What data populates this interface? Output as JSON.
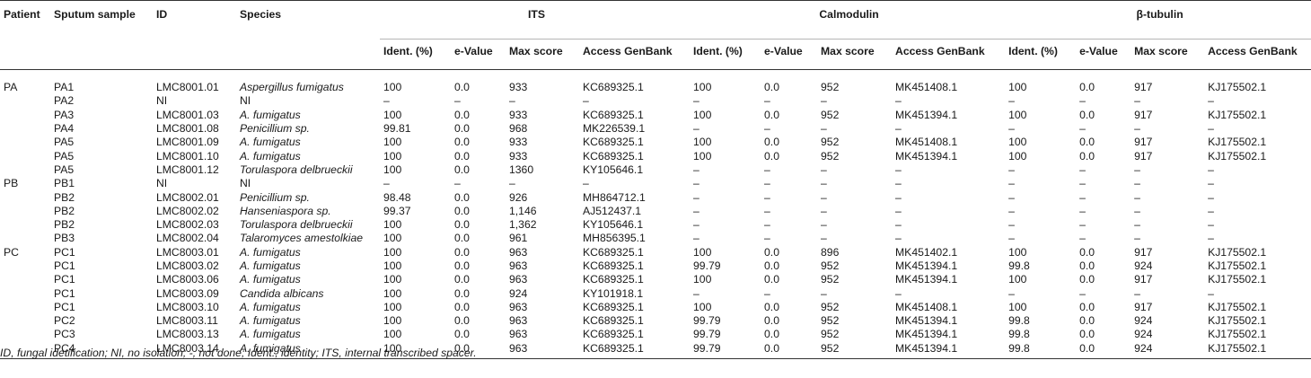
{
  "headers": {
    "patient": "Patient",
    "sputum_sample": "Sputum sample",
    "id": "ID",
    "species": "Species",
    "groups": [
      "ITS",
      "Calmodulin",
      "β-tubulin"
    ],
    "sub": [
      "Ident. (%)",
      "e-Value",
      "Max score",
      "Access GenBank"
    ]
  },
  "rows": [
    [
      "PA",
      "PA1",
      "LMC8001.01",
      "Aspergillus fumigatus",
      "100",
      "0.0",
      "933",
      "KC689325.1",
      "100",
      "0.0",
      "952",
      "MK451408.1",
      "100",
      "0.0",
      "917",
      "KJ175502.1"
    ],
    [
      "",
      "PA2",
      "NI",
      "NI",
      "–",
      "–",
      "–",
      "–",
      "–",
      "–",
      "–",
      "–",
      "–",
      "–",
      "–",
      "–"
    ],
    [
      "",
      "PA3",
      "LMC8001.03",
      "A. fumigatus",
      "100",
      "0.0",
      "933",
      "KC689325.1",
      "100",
      "0.0",
      "952",
      "MK451394.1",
      "100",
      "0.0",
      "917",
      "KJ175502.1"
    ],
    [
      "",
      "PA4",
      "LMC8001.08",
      "Penicillium sp.",
      "99.81",
      "0.0",
      "968",
      "MK226539.1",
      "–",
      "–",
      "–",
      "–",
      "–",
      "–",
      "–",
      "–"
    ],
    [
      "",
      "PA5",
      "LMC8001.09",
      "A. fumigatus",
      "100",
      "0.0",
      "933",
      "KC689325.1",
      "100",
      "0.0",
      "952",
      "MK451408.1",
      "100",
      "0.0",
      "917",
      "KJ175502.1"
    ],
    [
      "",
      "PA5",
      "LMC8001.10",
      "A. fumigatus",
      "100",
      "0.0",
      "933",
      "KC689325.1",
      "100",
      "0.0",
      "952",
      "MK451394.1",
      "100",
      "0.0",
      "917",
      "KJ175502.1"
    ],
    [
      "",
      "PA5",
      "LMC8001.12",
      "Torulaspora delbrueckii",
      "100",
      "0.0",
      "1360",
      "KY105646.1",
      "–",
      "–",
      "–",
      "–",
      "–",
      "–",
      "–",
      "–"
    ],
    [
      "PB",
      "PB1",
      "NI",
      "NI",
      "–",
      "–",
      "–",
      "–",
      "–",
      "–",
      "–",
      "–",
      "–",
      "–",
      "–",
      "–"
    ],
    [
      "",
      "PB2",
      "LMC8002.01",
      "Penicillium sp.",
      "98.48",
      "0.0",
      "926",
      "MH864712.1",
      "–",
      "–",
      "–",
      "–",
      "–",
      "–",
      "–",
      "–"
    ],
    [
      "",
      "PB2",
      "LMC8002.02",
      "Hanseniaspora sp.",
      "99.37",
      "0.0",
      "1,146",
      "AJ512437.1",
      "–",
      "–",
      "–",
      "–",
      "–",
      "–",
      "–",
      "–"
    ],
    [
      "",
      "PB2",
      "LMC8002.03",
      "Torulaspora delbrueckii",
      "100",
      "0.0",
      "1,362",
      "KY105646.1",
      "–",
      "–",
      "–",
      "–",
      "–",
      "–",
      "–",
      "–"
    ],
    [
      "",
      "PB3",
      "LMC8002.04",
      "Talaromyces amestolkiae",
      "100",
      "0.0",
      "961",
      "MH856395.1",
      "–",
      "–",
      "–",
      "–",
      "–",
      "–",
      "–",
      "–"
    ],
    [
      "PC",
      "PC1",
      "LMC8003.01",
      "A. fumigatus",
      "100",
      "0.0",
      "963",
      "KC689325.1",
      "100",
      "0.0",
      "896",
      "MK451402.1",
      "100",
      "0.0",
      "917",
      "KJ175502.1"
    ],
    [
      "",
      "PC1",
      "LMC8003.02",
      "A. fumigatus",
      "100",
      "0.0",
      "963",
      "KC689325.1",
      "99.79",
      "0.0",
      "952",
      "MK451394.1",
      "99.8",
      "0.0",
      "924",
      "KJ175502.1"
    ],
    [
      "",
      "PC1",
      "LMC8003.06",
      "A. fumigatus",
      "100",
      "0.0",
      "963",
      "KC689325.1",
      "100",
      "0.0",
      "952",
      "MK451394.1",
      "100",
      "0.0",
      "917",
      "KJ175502.1"
    ],
    [
      "",
      "PC1",
      "LMC8003.09",
      "Candida albicans",
      "100",
      "0.0",
      "924",
      "KY101918.1",
      "–",
      "–",
      "–",
      "–",
      "–",
      "–",
      "–",
      "–"
    ],
    [
      "",
      "PC1",
      "LMC8003.10",
      "A. fumigatus",
      "100",
      "0.0",
      "963",
      "KC689325.1",
      "100",
      "0.0",
      "952",
      "MK451408.1",
      "100",
      "0.0",
      "917",
      "KJ175502.1"
    ],
    [
      "",
      "PC2",
      "LMC8003.11",
      "A. fumigatus",
      "100",
      "0.0",
      "963",
      "KC689325.1",
      "99.79",
      "0.0",
      "952",
      "MK451394.1",
      "99.8",
      "0.0",
      "924",
      "KJ175502.1"
    ],
    [
      "",
      "PC3",
      "LMC8003.13",
      "A. fumigatus",
      "100",
      "0.0",
      "963",
      "KC689325.1",
      "99.79",
      "0.0",
      "952",
      "MK451394.1",
      "99.8",
      "0.0",
      "924",
      "KJ175502.1"
    ],
    [
      "",
      "PC4",
      "LMC8003.14",
      "A. fumigatus",
      "100",
      "0.0",
      "963",
      "KC689325.1",
      "99.79",
      "0.0",
      "952",
      "MK451394.1",
      "99.8",
      "0.0",
      "924",
      "KJ175502.1"
    ]
  ],
  "footnote": "ID, fungal idetification; NI, no isolation; -, not done; Ident., identity; ITS, internal transcribed spacer."
}
